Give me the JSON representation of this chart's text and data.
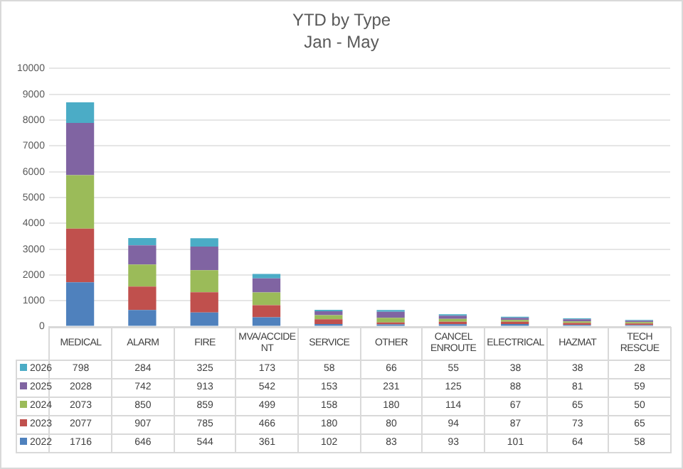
{
  "chart_data": {
    "type": "bar",
    "title": "YTD by Type",
    "subtitle": "Jan - May",
    "stacked": true,
    "grid": "y",
    "legend": "bottom",
    "data_labels": true,
    "categories": [
      "MEDICAL",
      "ALARM",
      "FIRE",
      "MVA/ACCIDENT",
      "SERVICE",
      "OTHER",
      "CANCEL ENROUTE",
      "ELECTRICAL",
      "HAZMAT",
      "TECH RESCUE"
    ],
    "ylim": [
      0,
      10000
    ],
    "yticks": [
      0,
      1000,
      2000,
      3000,
      4000,
      5000,
      6000,
      7000,
      8000,
      9000,
      10000
    ],
    "series": [
      {
        "name": "2022",
        "color": "#4f81bd",
        "values": [
          1716,
          646,
          544,
          361,
          102,
          83,
          93,
          101,
          64,
          58
        ]
      },
      {
        "name": "2023",
        "color": "#c0504d",
        "values": [
          2077,
          907,
          785,
          466,
          180,
          80,
          94,
          87,
          73,
          65
        ]
      },
      {
        "name": "2024",
        "color": "#9bbb59",
        "values": [
          2073,
          850,
          859,
          499,
          158,
          180,
          114,
          67,
          65,
          50
        ]
      },
      {
        "name": "2025",
        "color": "#8064a2",
        "values": [
          2028,
          742,
          913,
          542,
          153,
          231,
          125,
          88,
          81,
          59
        ]
      },
      {
        "name": "2026",
        "color": "#4bacc6",
        "values": [
          798,
          284,
          325,
          173,
          58,
          66,
          55,
          38,
          38,
          28
        ]
      }
    ]
  }
}
